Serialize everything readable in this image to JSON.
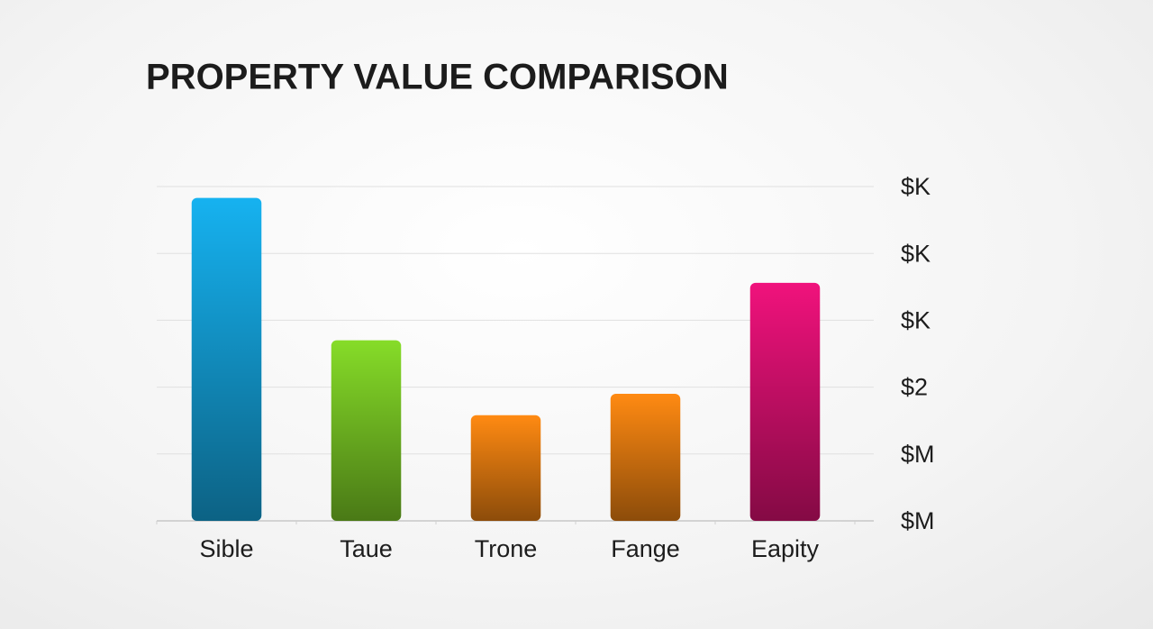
{
  "chart_data": {
    "type": "bar",
    "title": "PROPERTY VALUE COMPARISON",
    "categories": [
      "Sible",
      "Taue",
      "Trone",
      "Fange",
      "Eapity"
    ],
    "values": [
      4.83,
      2.7,
      1.58,
      1.9,
      3.56
    ],
    "colors": [
      "#16b2f0",
      "#86dc28",
      "#ff8a12",
      "#ff8a12",
      "#f0127c"
    ],
    "ylim": [
      0,
      5
    ],
    "yticks": [
      {
        "value": 0,
        "label": "$M"
      },
      {
        "value": 1,
        "label": "$M"
      },
      {
        "value": 2,
        "label": "$2"
      },
      {
        "value": 3,
        "label": "$K"
      },
      {
        "value": 4,
        "label": "$K"
      },
      {
        "value": 5,
        "label": "$K"
      }
    ],
    "grid": true
  }
}
